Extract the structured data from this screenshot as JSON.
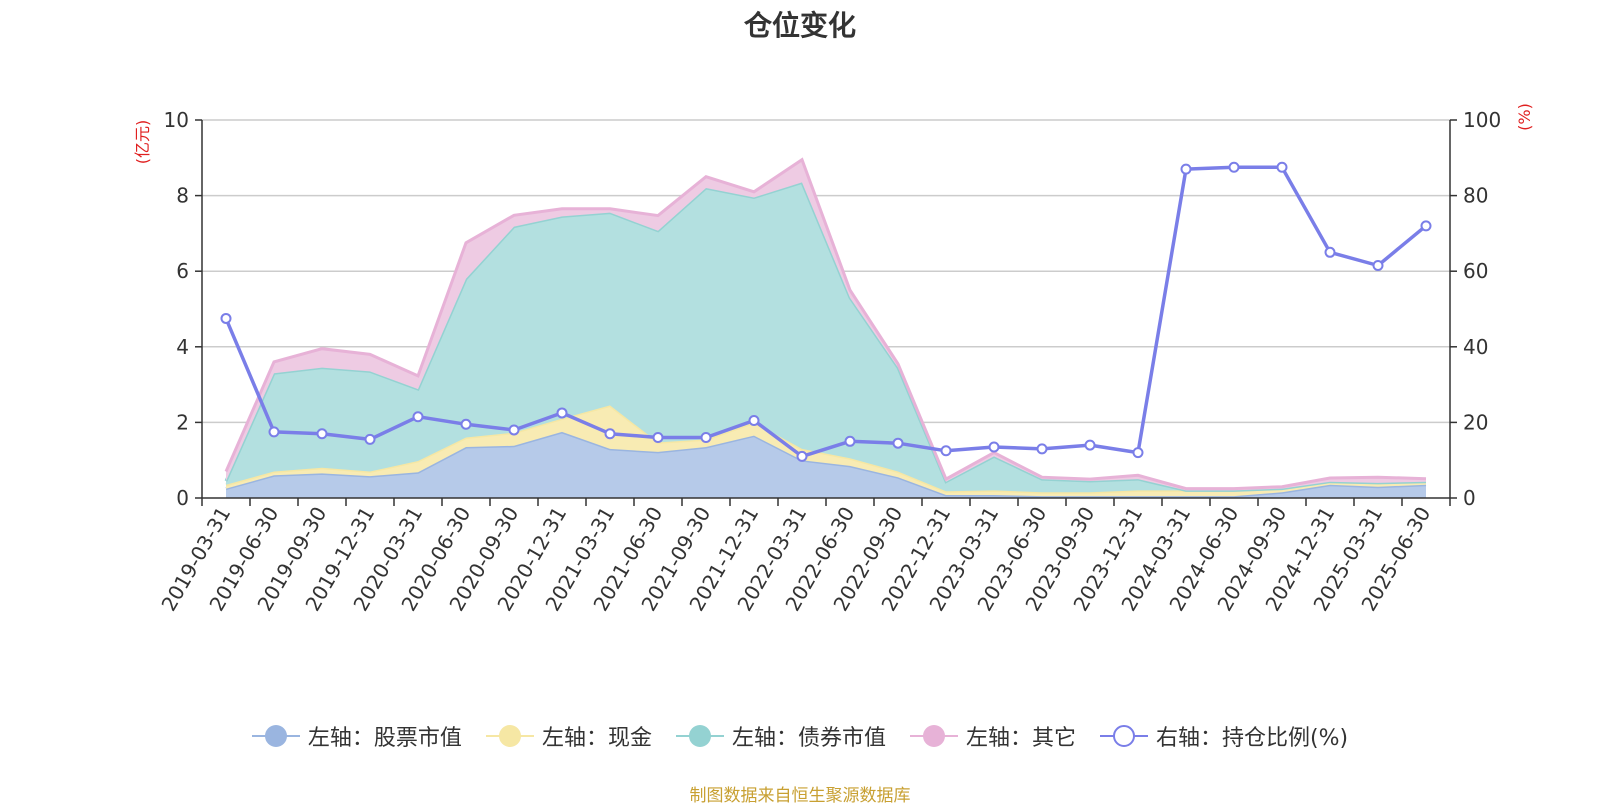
{
  "chart_data": {
    "type": "area",
    "title": "仓位变化",
    "left_axis_unit": "(亿元)",
    "right_axis_unit": "(%)",
    "ylim_left": [
      0,
      10
    ],
    "ylim_right": [
      0,
      100
    ],
    "left_ticks": [
      "0",
      "2",
      "4",
      "6",
      "8",
      "10"
    ],
    "right_ticks": [
      "0",
      "20",
      "40",
      "60",
      "80",
      "100"
    ],
    "grid": true,
    "legend_position": "bottom",
    "categories": [
      "2019-03-31",
      "2019-06-30",
      "2019-09-30",
      "2019-12-31",
      "2020-03-31",
      "2020-06-30",
      "2020-09-30",
      "2020-12-31",
      "2021-03-31",
      "2021-06-30",
      "2021-09-30",
      "2021-12-31",
      "2022-03-31",
      "2022-06-30",
      "2022-09-30",
      "2022-12-31",
      "2023-03-31",
      "2023-06-30",
      "2023-09-30",
      "2023-12-31",
      "2024-03-31",
      "2024-06-30",
      "2024-09-30",
      "2024-12-31",
      "2025-03-31",
      "2025-06-30"
    ],
    "series": [
      {
        "name": "左轴：股票市值",
        "axis": "left",
        "stacked": true,
        "color": "#9ab5e0",
        "fill": "#b6cae9",
        "values": [
          0.25,
          0.6,
          0.65,
          0.58,
          0.68,
          1.35,
          1.38,
          1.75,
          1.3,
          1.22,
          1.35,
          1.65,
          1.0,
          0.85,
          0.55,
          0.08,
          0.08,
          0.05,
          0.05,
          0.05,
          0.05,
          0.05,
          0.15,
          0.35,
          0.3,
          0.35
        ]
      },
      {
        "name": "左轴：现金",
        "axis": "left",
        "stacked": true,
        "color": "#f6e7a4",
        "fill": "#f8ebb3",
        "values": [
          0.1,
          0.1,
          0.15,
          0.12,
          0.3,
          0.25,
          0.35,
          0.35,
          1.15,
          0.25,
          0.2,
          0.35,
          0.3,
          0.2,
          0.15,
          0.1,
          0.12,
          0.1,
          0.1,
          0.15,
          0.15,
          0.15,
          0.1,
          0.08,
          0.1,
          0.08
        ]
      },
      {
        "name": "左轴：债券市值",
        "axis": "left",
        "stacked": true,
        "color": "#94d2d2",
        "fill": "#b3e0e0",
        "values": [
          0.1,
          2.6,
          2.65,
          2.65,
          1.9,
          4.2,
          5.45,
          5.35,
          5.1,
          5.6,
          6.65,
          5.95,
          7.05,
          4.25,
          2.75,
          0.25,
          0.9,
          0.35,
          0.3,
          0.3,
          0.0,
          0.0,
          0.0,
          0.0,
          0.0,
          0.0
        ]
      },
      {
        "name": "左轴：其它",
        "axis": "left",
        "stacked": true,
        "color": "#e7b2d7",
        "fill": "#eecbe3",
        "values": [
          0.25,
          0.3,
          0.5,
          0.45,
          0.35,
          0.95,
          0.3,
          0.2,
          0.1,
          0.4,
          0.3,
          0.15,
          0.6,
          0.2,
          0.1,
          0.07,
          0.1,
          0.05,
          0.05,
          0.1,
          0.05,
          0.05,
          0.05,
          0.1,
          0.15,
          0.08
        ]
      },
      {
        "name": "右轴：持仓比例(%)",
        "axis": "right",
        "stacked": false,
        "color": "#7a7ee8",
        "fill": "none",
        "values": [
          47.5,
          17.5,
          17,
          15.5,
          21.5,
          19.5,
          18,
          22.5,
          17,
          16,
          16,
          20.5,
          11,
          15,
          14.5,
          12.5,
          13.5,
          13,
          14,
          12,
          87,
          87.5,
          87.5,
          65,
          61.5,
          72
        ]
      }
    ]
  },
  "source_text": "制图数据来自恒生聚源数据库"
}
